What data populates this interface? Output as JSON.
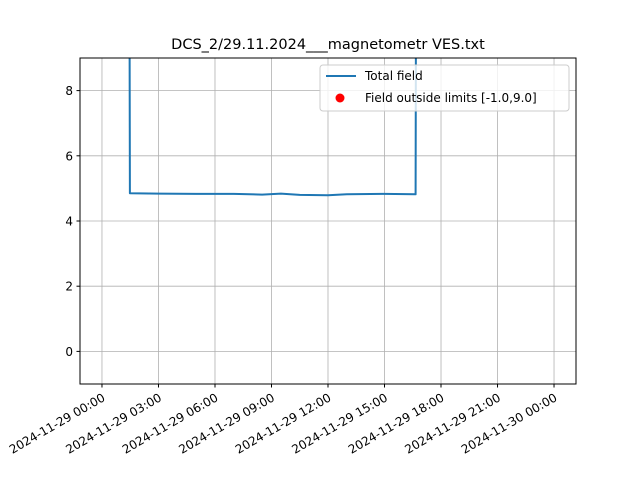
{
  "chart_data": {
    "type": "line",
    "title": "DCS_2/29.11.2024___magnetometr VES.txt",
    "xlabel": "",
    "ylabel": "",
    "xlim": [
      "2024-11-28 22:50",
      "2024-11-30 01:10"
    ],
    "ylim": [
      -1.0,
      9.0
    ],
    "grid": true,
    "legend_position": "upper-right",
    "x_ticks": [
      "2024-11-29 00:00",
      "2024-11-29 03:00",
      "2024-11-29 06:00",
      "2024-11-29 09:00",
      "2024-11-29 12:00",
      "2024-11-29 15:00",
      "2024-11-29 18:00",
      "2024-11-29 21:00",
      "2024-11-30 00:00"
    ],
    "y_ticks": [
      0,
      2,
      4,
      6,
      8
    ],
    "series": [
      {
        "name": "Total field",
        "color": "#1f77b4",
        "x": [
          "2024-11-29 01:28",
          "2024-11-29 01:29",
          "2024-11-29 03:00",
          "2024-11-29 05:00",
          "2024-11-29 07:00",
          "2024-11-29 08:30",
          "2024-11-29 09:30",
          "2024-11-29 10:30",
          "2024-11-29 12:00",
          "2024-11-29 13:00",
          "2024-11-29 15:00",
          "2024-11-29 16:39",
          "2024-11-29 16:40"
        ],
        "y": [
          9.5,
          4.85,
          4.84,
          4.83,
          4.83,
          4.81,
          4.84,
          4.8,
          4.79,
          4.82,
          4.83,
          4.82,
          9.5
        ]
      },
      {
        "name": "Field outside limits [-1.0,9.0]",
        "color": "#ff0000",
        "marker": "circle",
        "x": [],
        "y": []
      }
    ]
  }
}
